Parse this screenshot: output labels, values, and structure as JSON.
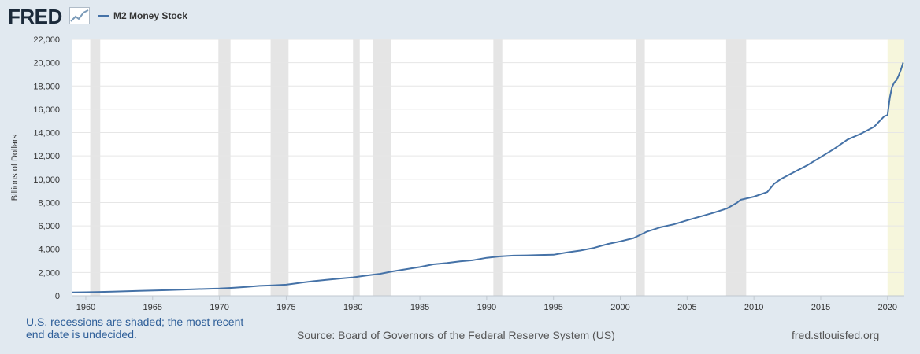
{
  "brand": {
    "logo_text": "FRED"
  },
  "colors": {
    "background": "#e1e9f0",
    "plot_background": "#ffffff",
    "series": "#4572a7",
    "recession_shade": "#e5e5e5",
    "undecided_shade": "#f6f6dc",
    "grid": "#e6e6e6",
    "link_text": "#2f5f99"
  },
  "footer": {
    "recession_note": "U.S. recessions are shaded; the most recent end date is undecided.",
    "source": "Source: Board of Governors of the Federal Reserve System (US)",
    "site": "fred.stlouisfed.org"
  },
  "chart_data": {
    "type": "line",
    "title": "",
    "xlabel": "",
    "ylabel": "Billions of Dollars",
    "xlim": [
      1959.0,
      2021.25
    ],
    "ylim": [
      0,
      22000
    ],
    "yticks": [
      0,
      2000,
      4000,
      6000,
      8000,
      10000,
      12000,
      14000,
      16000,
      18000,
      20000,
      22000
    ],
    "ytick_labels": [
      "0",
      "2,000",
      "4,000",
      "6,000",
      "8,000",
      "10,000",
      "12,000",
      "14,000",
      "16,000",
      "18,000",
      "20,000",
      "22,000"
    ],
    "xticks": [
      1960,
      1965,
      1970,
      1975,
      1980,
      1985,
      1990,
      1995,
      2000,
      2005,
      2010,
      2015,
      2020
    ],
    "xtick_labels": [
      "1960",
      "1965",
      "1970",
      "1975",
      "1980",
      "1985",
      "1990",
      "1995",
      "2000",
      "2005",
      "2010",
      "2015",
      "2020"
    ],
    "grid": true,
    "legend_position": "top-left",
    "recessions": [
      {
        "start": 1960.33,
        "end": 1961.08
      },
      {
        "start": 1969.92,
        "end": 1970.83
      },
      {
        "start": 1973.83,
        "end": 1975.17
      },
      {
        "start": 1980.0,
        "end": 1980.5
      },
      {
        "start": 1981.5,
        "end": 1982.83
      },
      {
        "start": 1990.5,
        "end": 1991.17
      },
      {
        "start": 2001.17,
        "end": 2001.83
      },
      {
        "start": 2007.92,
        "end": 2009.42
      }
    ],
    "undecided_recession": {
      "start": 2020.0,
      "end": 2021.25
    },
    "series": [
      {
        "name": "M2 Money Stock",
        "x": [
          1959.0,
          1960.0,
          1962.0,
          1964.0,
          1966.0,
          1968.0,
          1970.0,
          1971.0,
          1972.0,
          1973.0,
          1974.0,
          1975.0,
          1976.0,
          1977.0,
          1978.0,
          1979.0,
          1980.0,
          1981.0,
          1982.0,
          1983.0,
          1984.0,
          1985.0,
          1986.0,
          1987.0,
          1988.0,
          1989.0,
          1990.0,
          1991.0,
          1992.0,
          1993.0,
          1994.0,
          1995.0,
          1996.0,
          1997.0,
          1998.0,
          1999.0,
          2000.0,
          2001.0,
          2002.0,
          2003.0,
          2004.0,
          2005.0,
          2006.0,
          2007.0,
          2008.0,
          2008.75,
          2009.0,
          2010.0,
          2011.0,
          2011.5,
          2012.0,
          2013.0,
          2014.0,
          2015.0,
          2016.0,
          2017.0,
          2018.0,
          2019.0,
          2019.75,
          2020.0,
          2020.17,
          2020.33,
          2020.5,
          2020.67,
          2020.83,
          2021.0,
          2021.17
        ],
        "y": [
          290,
          305,
          350,
          420,
          480,
          560,
          620,
          680,
          760,
          850,
          900,
          950,
          1110,
          1250,
          1370,
          1480,
          1580,
          1740,
          1880,
          2100,
          2290,
          2470,
          2700,
          2810,
          2950,
          3060,
          3260,
          3380,
          3450,
          3470,
          3500,
          3520,
          3720,
          3880,
          4100,
          4430,
          4670,
          4950,
          5510,
          5880,
          6130,
          6470,
          6800,
          7130,
          7500,
          8000,
          8230,
          8500,
          8900,
          9600,
          10000,
          10600,
          11200,
          11900,
          12600,
          13400,
          13900,
          14500,
          15400,
          15500,
          17000,
          17900,
          18300,
          18500,
          18900,
          19400,
          20000
        ]
      }
    ]
  }
}
